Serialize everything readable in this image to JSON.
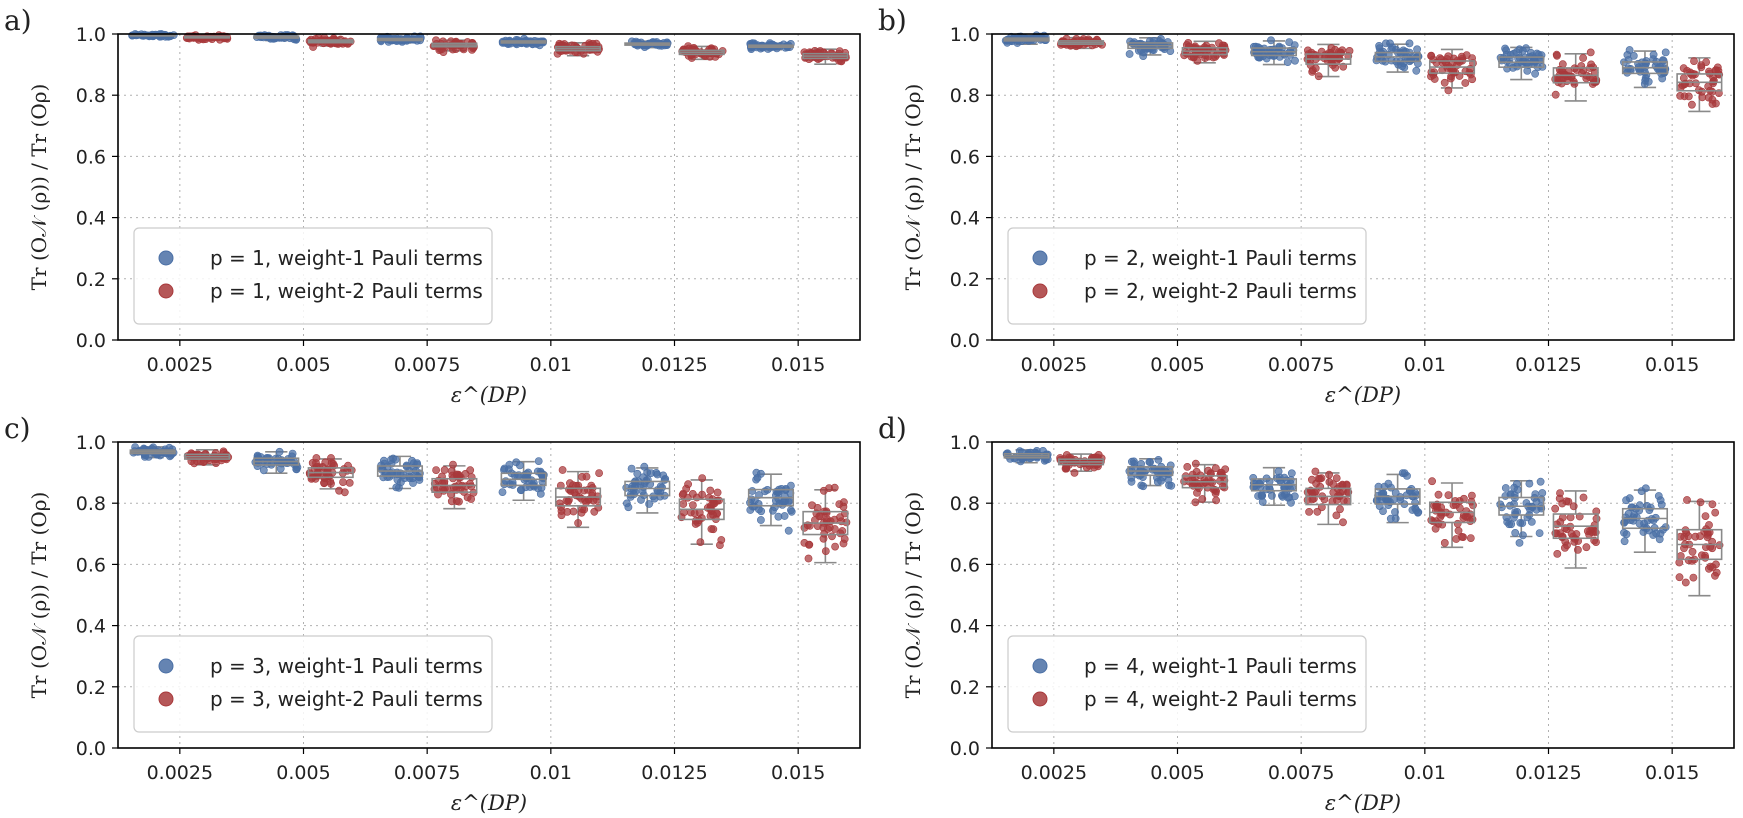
{
  "figure": {
    "panel_labels": [
      "a)",
      "b)",
      "c)",
      "d)"
    ]
  },
  "colors": {
    "weight1": "#4a6fa5",
    "weight2": "#a8393b",
    "box": "#8a8a8a",
    "grid": "#b0b0b0"
  },
  "chart_data": [
    {
      "type": "box-strip",
      "panel": "a)",
      "categories": [
        "0.0025",
        "0.005",
        "0.0075",
        "0.01",
        "0.0125",
        "0.015"
      ],
      "xlabel": "ε^(DP)",
      "ylabel": "Tr (O𝒩 (ρ)) / Tr (Oρ)",
      "ylim": [
        0,
        1.0
      ],
      "yticks": [
        "0.0",
        "0.2",
        "0.4",
        "0.6",
        "0.8",
        "1.0"
      ],
      "grid": true,
      "legend_placement": "lower-left",
      "series": [
        {
          "name": "p = 1, weight-1 Pauli terms",
          "median": [
            0.996,
            0.99,
            0.982,
            0.974,
            0.967,
            0.96
          ],
          "spread": [
            0.004,
            0.006,
            0.006,
            0.006,
            0.006,
            0.006
          ]
        },
        {
          "name": "p = 1, weight-2 Pauli terms",
          "median": [
            0.99,
            0.976,
            0.964,
            0.952,
            0.94,
            0.928
          ],
          "spread": [
            0.005,
            0.008,
            0.01,
            0.012,
            0.012,
            0.014
          ]
        }
      ]
    },
    {
      "type": "box-strip",
      "panel": "b)",
      "categories": [
        "0.0025",
        "0.005",
        "0.0075",
        "0.01",
        "0.0125",
        "0.015"
      ],
      "xlabel": "ε^(DP)",
      "ylabel": "Tr (O𝒩 (ρ)) / Tr (Oρ)",
      "ylim": [
        0,
        1.0
      ],
      "yticks": [
        "0.0",
        "0.2",
        "0.4",
        "0.6",
        "0.8",
        "1.0"
      ],
      "grid": true,
      "legend_placement": "lower-left",
      "series": [
        {
          "name": "p = 2, weight-1 Pauli terms",
          "median": [
            0.982,
            0.962,
            0.942,
            0.925,
            0.908,
            0.89
          ],
          "spread": [
            0.008,
            0.016,
            0.022,
            0.026,
            0.03,
            0.034
          ]
        },
        {
          "name": "p = 2, weight-2 Pauli terms",
          "median": [
            0.972,
            0.944,
            0.918,
            0.892,
            0.865,
            0.842
          ],
          "spread": [
            0.01,
            0.02,
            0.03,
            0.036,
            0.044,
            0.05
          ]
        }
      ]
    },
    {
      "type": "box-strip",
      "panel": "c)",
      "categories": [
        "0.0025",
        "0.005",
        "0.0075",
        "0.01",
        "0.0125",
        "0.015"
      ],
      "xlabel": "ε^(DP)",
      "ylabel": "Tr (O𝒩 (ρ)) / Tr (Oρ)",
      "ylim": [
        0,
        1.0
      ],
      "yticks": [
        "0.0",
        "0.2",
        "0.4",
        "0.6",
        "0.8",
        "1.0"
      ],
      "grid": true,
      "legend_placement": "lower-left",
      "series": [
        {
          "name": "p = 3, weight-1 Pauli terms",
          "median": [
            0.968,
            0.936,
            0.905,
            0.878,
            0.848,
            0.818
          ],
          "spread": [
            0.01,
            0.02,
            0.03,
            0.036,
            0.042,
            0.048
          ]
        },
        {
          "name": "p = 3, weight-2 Pauli terms",
          "median": [
            0.952,
            0.9,
            0.858,
            0.82,
            0.78,
            0.735
          ],
          "spread": [
            0.014,
            0.028,
            0.04,
            0.052,
            0.06,
            0.068
          ]
        }
      ]
    },
    {
      "type": "box-strip",
      "panel": "d)",
      "categories": [
        "0.0025",
        "0.005",
        "0.0075",
        "0.01",
        "0.0125",
        "0.015"
      ],
      "xlabel": "ε^(DP)",
      "ylabel": "Tr (O𝒩 (ρ)) / Tr (Oρ)",
      "ylim": [
        0,
        1.0
      ],
      "yticks": [
        "0.0",
        "0.2",
        "0.4",
        "0.6",
        "0.8",
        "1.0"
      ],
      "grid": true,
      "legend_placement": "lower-left",
      "series": [
        {
          "name": "p = 4, weight-1 Pauli terms",
          "median": [
            0.955,
            0.905,
            0.86,
            0.822,
            0.79,
            0.75
          ],
          "spread": [
            0.012,
            0.025,
            0.035,
            0.045,
            0.052,
            0.058
          ]
        },
        {
          "name": "p = 4, weight-2 Pauli terms",
          "median": [
            0.935,
            0.87,
            0.822,
            0.77,
            0.725,
            0.665
          ],
          "spread": [
            0.016,
            0.035,
            0.048,
            0.06,
            0.072,
            0.088
          ]
        }
      ]
    }
  ]
}
